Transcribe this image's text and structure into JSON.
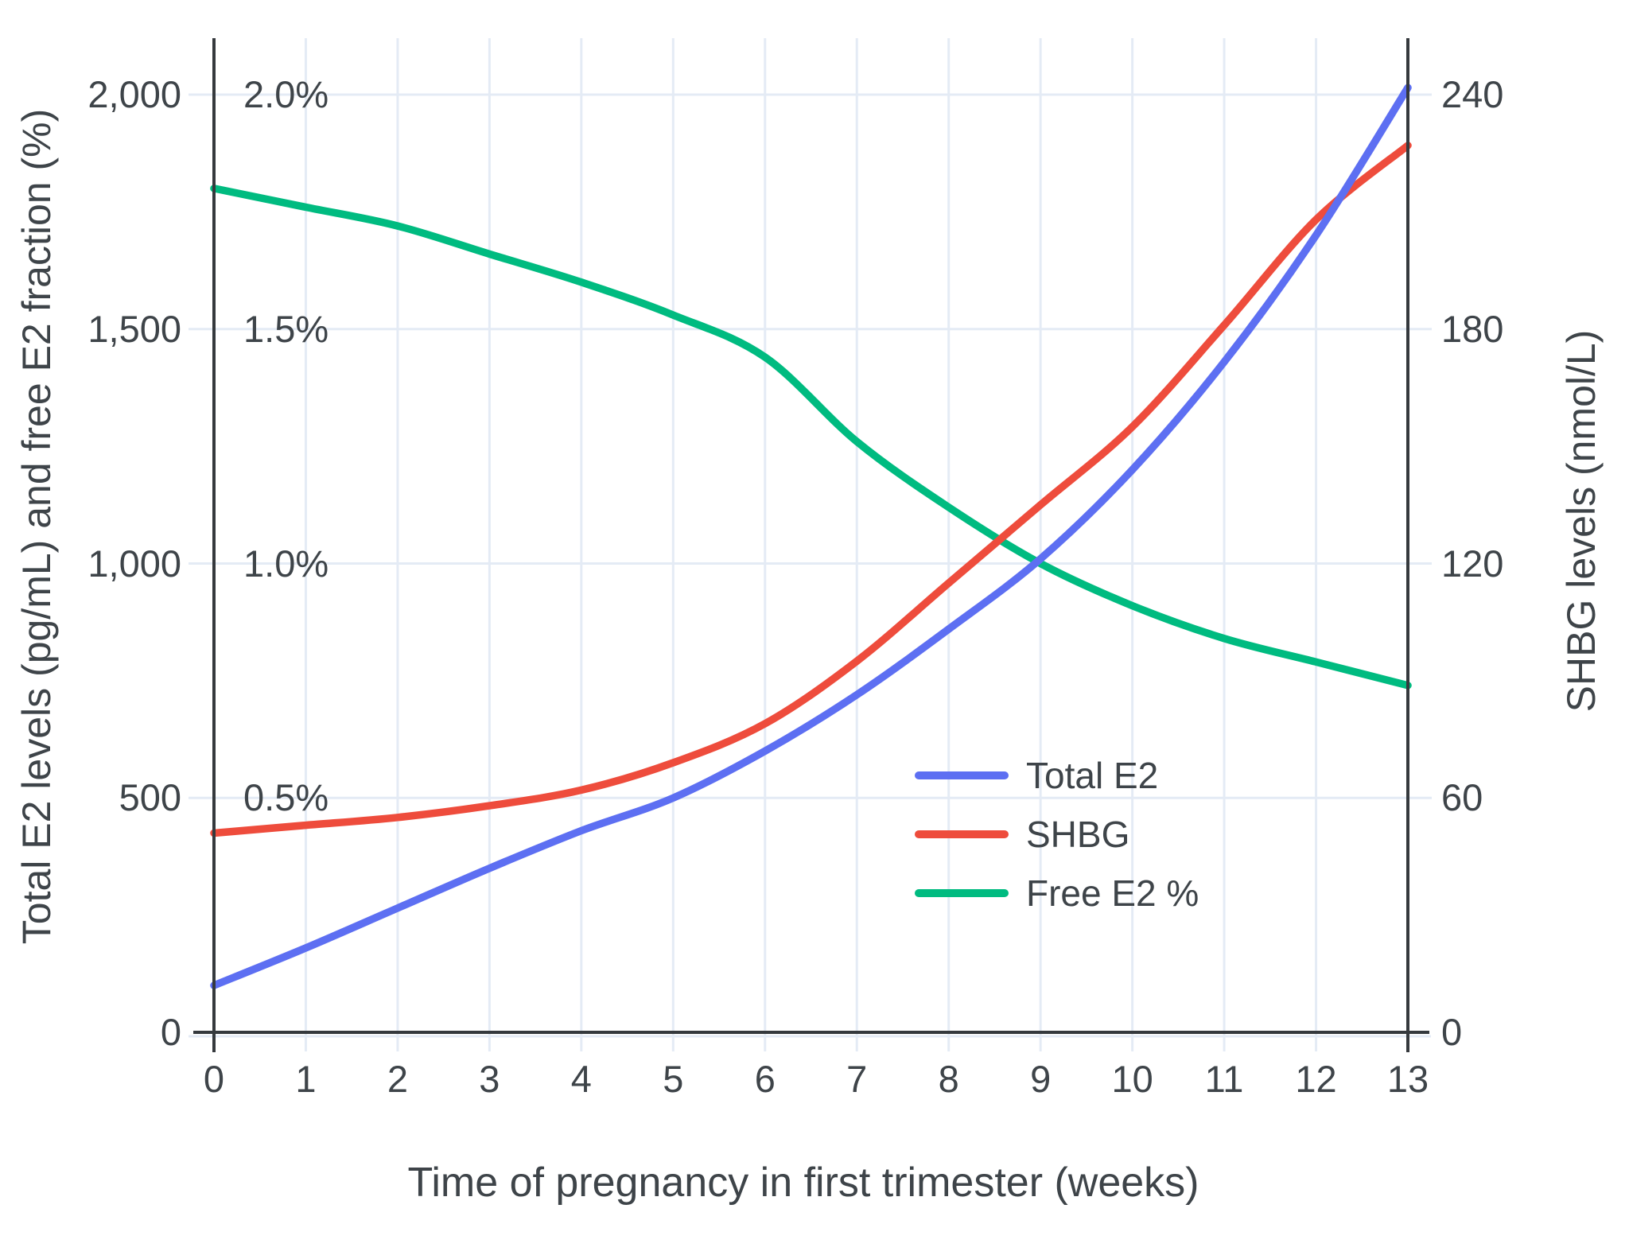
{
  "chart_data": {
    "type": "line",
    "title": "",
    "xlabel": "Time of pregnancy in first trimester (weeks)",
    "ylabel_left": "Total E2 levels (pg/mL) and free E2 fraction (%)",
    "ylabel_right": "SHBG levels (nmol/L)",
    "x_tick_labels": [
      "0",
      "1",
      "2",
      "3",
      "4",
      "5",
      "6",
      "7",
      "8",
      "9",
      "10",
      "11",
      "12",
      "13"
    ],
    "x_tick_values": [
      0,
      1,
      2,
      3,
      4,
      5,
      6,
      7,
      8,
      9,
      10,
      11,
      12,
      13
    ],
    "x_range": [
      0,
      13
    ],
    "left_axis": {
      "tick_values": [
        0,
        500,
        1000,
        1500,
        2000
      ],
      "tick_labels": [
        "0",
        "500",
        "1,000",
        "1,500",
        "2,000"
      ],
      "range": [
        0,
        2120
      ]
    },
    "percent_labels": [
      {
        "label": "0.5%",
        "value": 500
      },
      {
        "label": "1.0%",
        "value": 1000
      },
      {
        "label": "1.5%",
        "value": 1500
      },
      {
        "label": "2.0%",
        "value": 2000
      }
    ],
    "right_axis": {
      "tick_values": [
        0,
        60,
        120,
        180,
        240
      ],
      "tick_labels": [
        "0",
        "60",
        "120",
        "180",
        "240"
      ],
      "range": [
        0,
        254
      ]
    },
    "grid": true,
    "legend_position": "inside-bottom-right",
    "series": [
      {
        "name": "Total E2",
        "axis": "left",
        "unit": "pg/mL",
        "color": "#5D6FF2",
        "x": [
          0,
          1,
          2,
          3,
          4,
          5,
          6,
          7,
          8,
          9,
          10,
          11,
          12,
          13
        ],
        "values": [
          100,
          180,
          265,
          350,
          430,
          500,
          600,
          720,
          860,
          1010,
          1200,
          1430,
          1700,
          2015
        ]
      },
      {
        "name": "SHBG",
        "axis": "right",
        "unit": "nmol/L",
        "color": "#EE4C3C",
        "x": [
          0,
          1,
          2,
          3,
          4,
          5,
          6,
          7,
          8,
          9,
          10,
          11,
          12,
          13
        ],
        "values": [
          51,
          53,
          55,
          58,
          62,
          69,
          79,
          95,
          115,
          135,
          155,
          181,
          208,
          227
        ]
      },
      {
        "name": "Free E2 %",
        "axis": "left-percent",
        "unit": "%",
        "color": "#00BB80",
        "x": [
          0,
          1,
          2,
          3,
          4,
          5,
          6,
          7,
          8,
          9,
          10,
          11,
          12,
          13
        ],
        "values": [
          1.8,
          1.76,
          1.72,
          1.66,
          1.6,
          1.53,
          1.44,
          1.26,
          1.12,
          1.0,
          0.91,
          0.84,
          0.79,
          0.74
        ]
      }
    ],
    "colors": {
      "grid": "#E4EBF5",
      "axis": "#35393D",
      "text": "#3E4449"
    }
  }
}
